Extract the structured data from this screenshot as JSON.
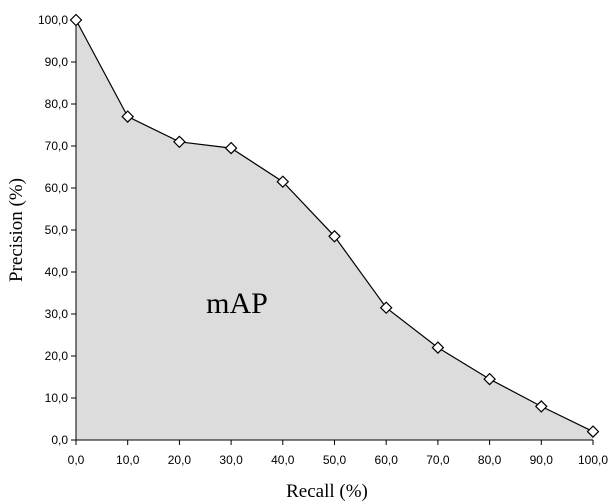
{
  "chart_data": {
    "type": "area",
    "title": "",
    "xlabel": "Recall (%)",
    "ylabel": "Precision (%)",
    "xlim": [
      0,
      100
    ],
    "ylim": [
      0,
      100
    ],
    "x_ticks": [
      "0,0",
      "10,0",
      "20,0",
      "30,0",
      "40,0",
      "50,0",
      "60,0",
      "70,0",
      "80,0",
      "90,0",
      "100,0"
    ],
    "y_ticks": [
      "0,0",
      "10,0",
      "20,0",
      "30,0",
      "40,0",
      "50,0",
      "60,0",
      "70,0",
      "80,0",
      "90,0",
      "100,0"
    ],
    "grid": false,
    "legend": "none",
    "fill_color": "#dcdcdc",
    "line_color": "#000000",
    "marker": "diamond",
    "annotation": "mAP",
    "series": [
      {
        "x": [
          0,
          10,
          20,
          30,
          40,
          50,
          60,
          70,
          80,
          90,
          100
        ],
        "y": [
          100,
          77,
          71,
          69.5,
          61.5,
          48.5,
          31.5,
          22,
          14.5,
          8,
          2
        ]
      }
    ]
  }
}
